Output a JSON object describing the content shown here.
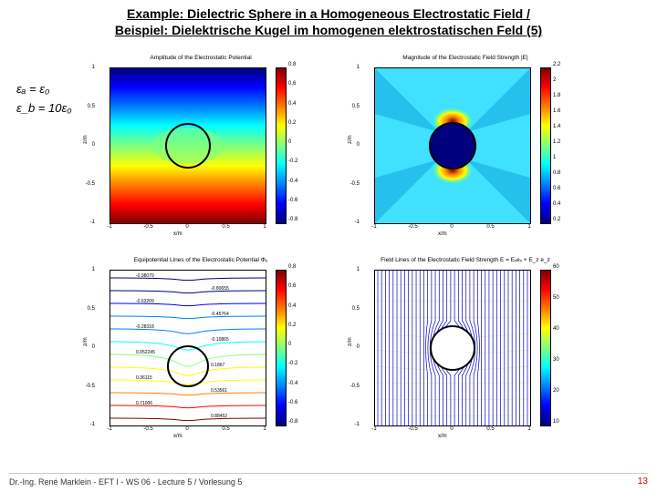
{
  "title_en": "Example: Dielectric Sphere in a Homogeneous Electrostatic Field /",
  "title_de": "Beispiel: Dielektrische Kugel im homogenen elektrostatischen Feld (5)",
  "equations": {
    "line1": "εₐ = ε₀",
    "line2": "ε_b = 10ε₀"
  },
  "footer": "Dr.-Ing. René Marklein - EFT I - WS 06 - Lecture 5 / Vorlesung 5",
  "page_number": "13",
  "axis": {
    "xlabel": "x/m",
    "ylabel": "z/m",
    "ticks": [
      "-1",
      "-0.5",
      "0",
      "0.5",
      "1"
    ],
    "tick_positions_pct": [
      0,
      25,
      50,
      75,
      100
    ]
  },
  "jet_colors": [
    "#00007f",
    "#0000ff",
    "#007fff",
    "#00ffff",
    "#7fff7f",
    "#ffff00",
    "#ff7f00",
    "#ff0000",
    "#7f0000"
  ],
  "panels": {
    "tl": {
      "title": "Amplitude of the Electrostatic Potential",
      "cb_ticks": [
        "-0.8",
        "-0.6",
        "-0.4",
        "-0.2",
        "0",
        "0.2",
        "0.4",
        "0.6",
        "0.8"
      ],
      "circle": {
        "cx_pct": 50,
        "cy_pct": 50,
        "r_pct": 14
      }
    },
    "tr": {
      "title": "Magnitude of the Electrostatic Field Strength |E|",
      "cb_ticks": [
        "0.2",
        "0.4",
        "0.6",
        "0.8",
        "1",
        "1.2",
        "1.4",
        "1.6",
        "1.8",
        "2",
        "2.2"
      ],
      "circle": {
        "cx_pct": 50,
        "cy_pct": 50,
        "r_pct": 14
      }
    },
    "bl": {
      "title": "Equipotential Lines of the Electrostatic Potential Φₑ",
      "cb_ticks": [
        "-0.8",
        "-0.6",
        "-0.4",
        "-0.2",
        "0",
        "0.2",
        "0.4",
        "0.6",
        "0.8"
      ],
      "contour_labels": [
        "-0.98079",
        "-0.80655",
        "-0.63209",
        "-0.45764",
        "-0.28318",
        "-0.10865",
        "0.052245",
        "0.1867",
        "0.36115",
        "0.53561",
        "0.71006",
        "0.88452"
      ],
      "circle": {
        "cx_pct": 50,
        "cy_pct": 62,
        "r_pct": 14
      }
    },
    "br": {
      "title": "Field Lines of the Electrostatic Field Strength E = Eₓeₓ + E_z e_z",
      "cb_ticks": [
        "10",
        "20",
        "30",
        "40",
        "50",
        "60"
      ],
      "circle": {
        "cx_pct": 50,
        "cy_pct": 50,
        "r_pct": 14
      }
    }
  }
}
